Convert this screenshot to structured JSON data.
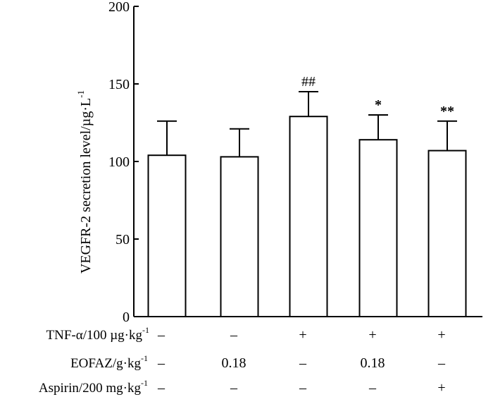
{
  "chart_data": {
    "type": "bar",
    "ylabel": "VEGFR-2 secretion level/µg·L",
    "ylabel_sup": "-1",
    "ylim": [
      0,
      200
    ],
    "yticks": [
      0,
      50,
      100,
      150,
      200
    ],
    "grid": false,
    "bars": [
      {
        "value": 104,
        "error": 22,
        "sig": ""
      },
      {
        "value": 103,
        "error": 18,
        "sig": ""
      },
      {
        "value": 129,
        "error": 16,
        "sig": "##"
      },
      {
        "value": 114,
        "error": 16,
        "sig": "*"
      },
      {
        "value": 107,
        "error": 19,
        "sig": "**"
      }
    ],
    "condition_rows": [
      {
        "label": "TNF-α/100 µg·kg",
        "sup": "-1",
        "cells": [
          "–",
          "–",
          "+",
          "+",
          "+"
        ]
      },
      {
        "label": "EOFAZ/g·kg",
        "sup": "-1",
        "cells": [
          "–",
          "0.18",
          "–",
          "0.18",
          "–"
        ]
      },
      {
        "label": "Aspirin/200 mg·kg",
        "sup": "-1",
        "cells": [
          "–",
          "–",
          "–",
          "–",
          "+"
        ]
      }
    ]
  }
}
